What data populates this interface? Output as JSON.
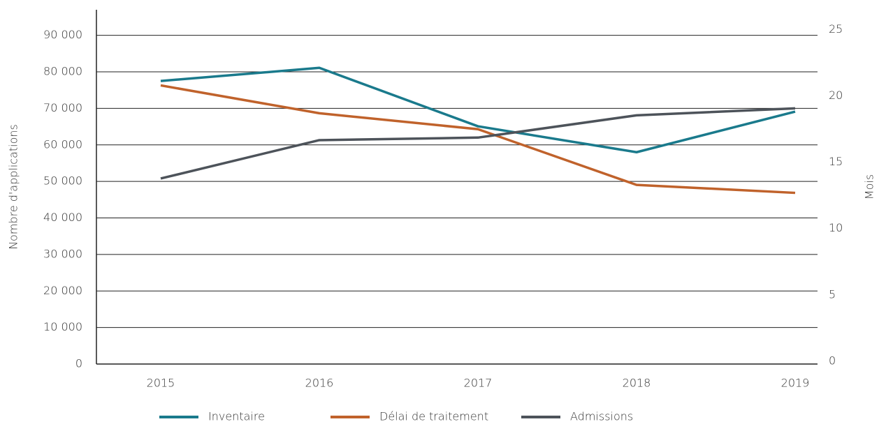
{
  "chart_data": {
    "type": "line",
    "categories": [
      "2015",
      "2016",
      "2017",
      "2018",
      "2019"
    ],
    "ylabel": "Nombre d'applications",
    "y2label": "Mois",
    "ylim": [
      0,
      97000
    ],
    "yticks": [
      0,
      {
        "value": 10000,
        "label": "10 000"
      },
      {
        "value": 20000,
        "label": "20 000"
      },
      {
        "value": 30000,
        "label": "30 000"
      },
      {
        "value": 40000,
        "label": "40 000"
      },
      {
        "value": 50000,
        "label": "50 000"
      },
      {
        "value": 60000,
        "label": "60 000"
      },
      {
        "value": 70000,
        "label": "70 000"
      },
      {
        "value": 80000,
        "label": "80 000"
      },
      {
        "value": 90000,
        "label": "90 000"
      }
    ],
    "y2lim": [
      0,
      26.7
    ],
    "y2ticks": [
      0,
      5,
      10,
      15,
      20,
      25
    ],
    "grid": true,
    "legend": "bottom",
    "series": [
      {
        "name": "Inventaire",
        "color": "#1a7a8c",
        "values": [
          77500,
          81100,
          65100,
          58000,
          69100
        ]
      },
      {
        "name": "Délai de traitement",
        "color": "#c0622b",
        "axis": "y2",
        "values": [
          21.0,
          18.9,
          17.7,
          13.5,
          12.9
        ]
      },
      {
        "name": "Admissions",
        "color": "#4d535a",
        "values": [
          50800,
          61300,
          62000,
          68100,
          70000
        ]
      }
    ]
  }
}
